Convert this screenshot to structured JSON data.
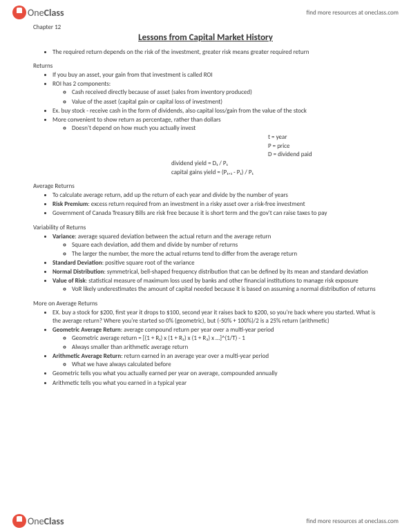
{
  "brand": {
    "part1": "One",
    "part2": "Class"
  },
  "headerLink": "find more resources at oneclass.com",
  "chapter": "Chapter 12",
  "title": "Lessons from Capital Market History",
  "intro": "The required return depends on the risk of the investment, greater risk means greater required return",
  "sec1": {
    "label": "Returns",
    "b1": "If you buy an asset, your gain from that investment is called ROI",
    "b2": "ROI has 2 components:",
    "b2a": "Cash received directly because of asset (sales from inventory produced)",
    "b2b": "Value of the asset (capital gain or capital loss of investment)",
    "b3": "Ex. buy stock - receive cash in the form of dividends, also capital loss/gain from the value of the stock",
    "b4": "More convenient to show return as percentage, rather than dollars",
    "b4a": "Doesn't depend on how much you actually invest"
  },
  "formulas": {
    "t": "t = year",
    "p": "P = price",
    "d": "D = dividend paid",
    "dy": "dividend yield = D₁ / P₁",
    "cgy": "capital gains yield = (P₁₊₁ - P₁) / P₁"
  },
  "sec2": {
    "label": "Average Returns",
    "b1": "To calculate average return, add up the return of each year and divide by the number of years",
    "b2_bold": "Risk Premium",
    "b2": ": excess return required from an investment in a risky asset over a risk-free investment",
    "b3": "Government of Canada Treasury Bills are risk free because it is short term and the gov't can raise taxes to pay"
  },
  "sec3": {
    "label": "Variability of Returns",
    "b1_bold": "Variance",
    "b1": ": average squared deviation between the actual return and the average return",
    "b1a": "Square each deviation, add them and divide by number of returns",
    "b1b": "The larger the number, the more the actual returns tend to differ from the average return",
    "b2_bold": "Standard Deviation",
    "b2": ": positive square root of the variance",
    "b3_bold": "Normal Distribution",
    "b3": ": symmetrical, bell-shaped frequency distribution that can be defined by its mean and standard deviation",
    "b4_bold": "Value of Risk",
    "b4": ": statistical measure of maximum loss used by banks and other financial institutions to manage risk exposure",
    "b4a": "VoR likely underestimates the amount of capital needed because it is based on assuming a normal distribution of returns"
  },
  "sec4": {
    "label": "More on Average Returns",
    "b1": "EX. buy a stock for $200, first year it drops to $100, second year it raises back to $200, so you're back where you started. What is the average return? Where you're started so 0% (geometric), but (-50% + 100%)/2 is a 25% return (arithmetic)",
    "b2_bold": "Geometric Average Return",
    "b2": ": average compound return per year over a multi-year period",
    "b2a": "Geometric average return = [(1 + R₁) x (1 + R₂) x (1 + R₃) x …]^(1/T) - 1",
    "b2b": "Always smaller than arithmetic average return",
    "b3_bold": "Arithmetic Average Return",
    "b3": ": return earned in an average year over a multi-year period",
    "b3a": "What we have always calculated before",
    "b4": "Geometric tells you what you actually earned per year on average, compounded annually",
    "b5": "Arithmetic tells you what you earned in a typical year"
  }
}
